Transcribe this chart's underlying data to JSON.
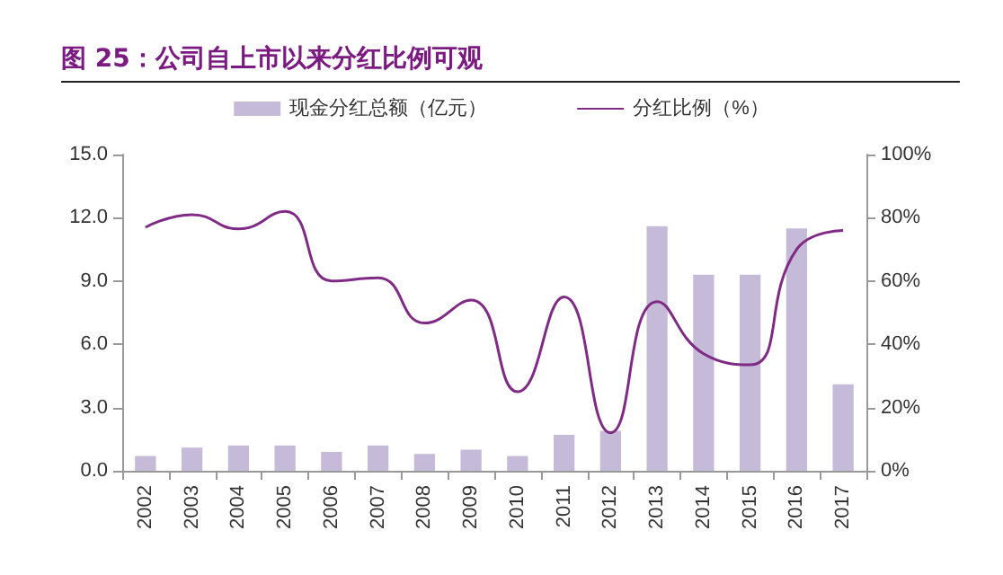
{
  "chart_data": {
    "type": "bar",
    "title": "图 25：公司自上市以来分红比例可观",
    "categories": [
      "2002",
      "2003",
      "2004",
      "2005",
      "2006",
      "2007",
      "2008",
      "2009",
      "2010",
      "2011",
      "2012",
      "2013",
      "2014",
      "2015",
      "2016",
      "2017"
    ],
    "series": [
      {
        "name": "现金分红总额（亿元）",
        "color": "#c5bad8",
        "values": [
          0.7,
          1.1,
          1.2,
          1.2,
          0.9,
          1.2,
          0.8,
          1.0,
          0.7,
          1.7,
          1.9,
          11.6,
          9.3,
          9.3,
          11.5,
          4.1
        ]
      },
      {
        "name": "分红比例（%）",
        "type": "line",
        "axis": "y2",
        "color": "#7f2a84",
        "values": [
          77,
          81,
          76.5,
          82,
          60,
          61,
          46.7,
          54,
          25,
          55,
          12,
          53.5,
          37,
          33.5,
          70,
          76
        ]
      }
    ],
    "ylim": [
      0,
      15
    ],
    "yticks": [
      {
        "value": 0,
        "label": "0.0"
      },
      {
        "value": 3,
        "label": "3.0"
      },
      {
        "value": 6,
        "label": "6.0"
      },
      {
        "value": 9,
        "label": "9.0"
      },
      {
        "value": 12,
        "label": "12.0"
      },
      {
        "value": 15,
        "label": "15.0"
      }
    ],
    "y2lim": [
      0,
      100
    ],
    "y2ticks": [
      {
        "value": 0,
        "label": "0%"
      },
      {
        "value": 20,
        "label": "20%"
      },
      {
        "value": 40,
        "label": "40%"
      },
      {
        "value": 60,
        "label": "60%"
      },
      {
        "value": 80,
        "label": "80%"
      },
      {
        "value": 100,
        "label": "100%"
      }
    ],
    "grid": false,
    "legend": "top",
    "marker": "none",
    "line_style": "solid"
  }
}
